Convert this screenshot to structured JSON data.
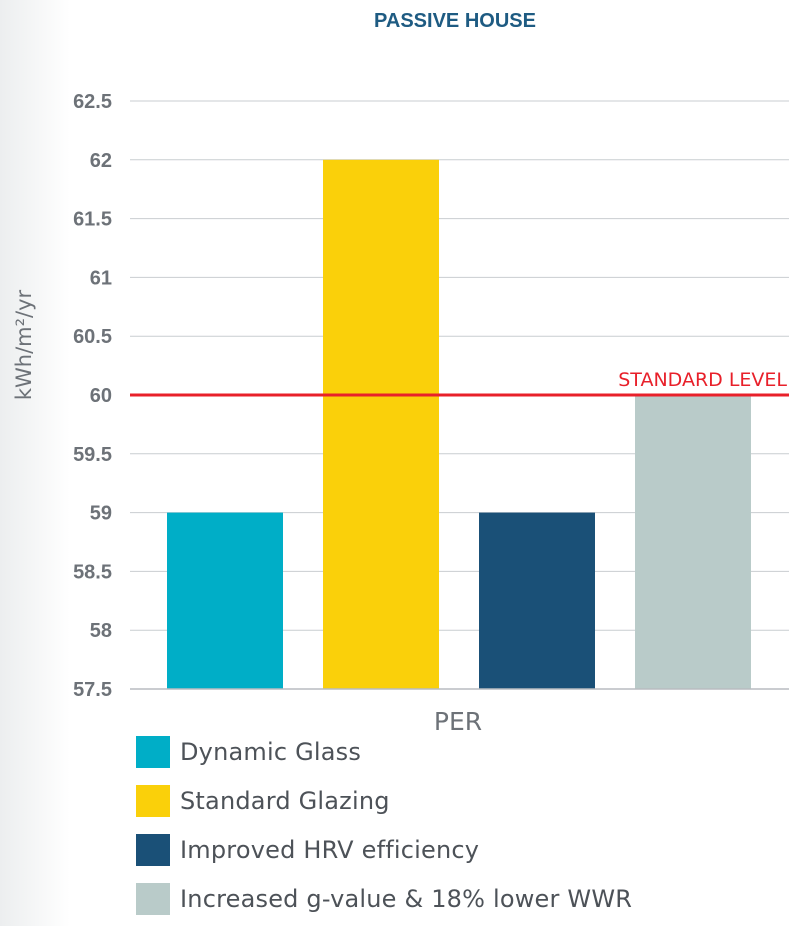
{
  "chart_data": {
    "type": "bar",
    "title": "PASSIVE HOUSE",
    "ylabel": "kWh/m²/yr",
    "xlabel": "PER",
    "ylim": [
      57.5,
      62.5
    ],
    "yticks": [
      "62.5",
      "62",
      "61.5",
      "61",
      "60.5",
      "60",
      "59.5",
      "59",
      "58.5",
      "58",
      "57.5"
    ],
    "reference_line": {
      "value": 60,
      "label": "STANDARD LEVEL",
      "color": "#e8202a"
    },
    "categories": [
      "PER"
    ],
    "series": [
      {
        "name": "Dynamic Glass",
        "values": [
          59
        ],
        "color": "#00aec7"
      },
      {
        "name": "Standard Glazing",
        "values": [
          62
        ],
        "color": "#fad00a"
      },
      {
        "name": "Improved HRV efficiency",
        "values": [
          59
        ],
        "color": "#1a5077"
      },
      {
        "name": "Increased g-value & 18% lower WWR",
        "values": [
          60
        ],
        "color": "#b9cbc9"
      }
    ],
    "grid": true,
    "legend_position": "bottom"
  }
}
